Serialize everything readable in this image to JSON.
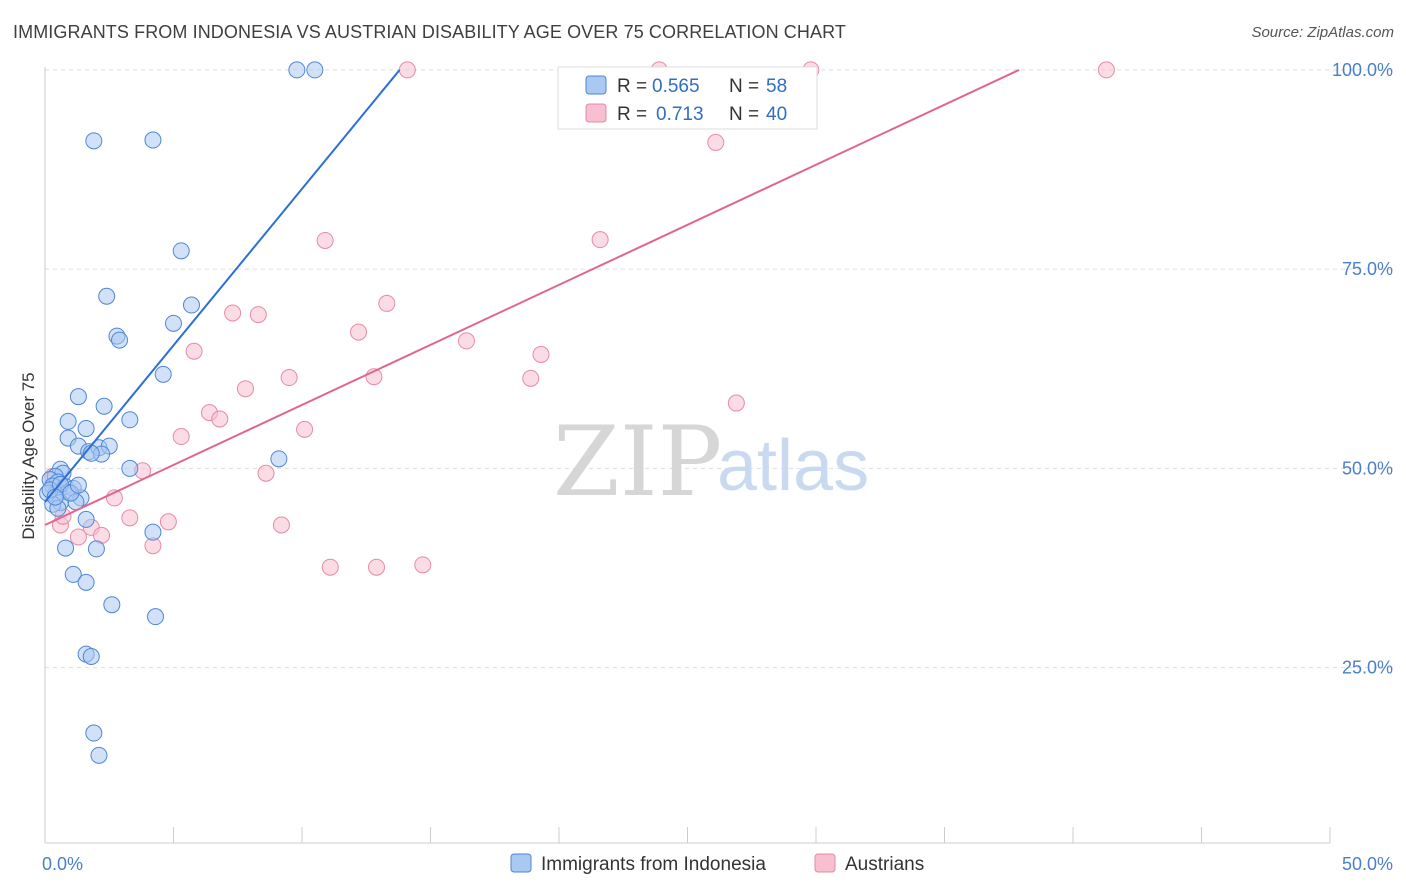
{
  "title": "IMMIGRANTS FROM INDONESIA VS AUSTRIAN DISABILITY AGE OVER 75 CORRELATION CHART",
  "source": "Source: ZipAtlas.com",
  "watermark": {
    "zip": "ZIP",
    "atlas": "atlas"
  },
  "colors": {
    "blue_fill": "#a9c8f2",
    "blue_stroke": "#4f86d6",
    "blue_line": "#2b6fd6",
    "pink_fill": "#f7bfd0",
    "pink_stroke": "#e58aa8",
    "pink_line": "#e06690",
    "tick_text": "#4a7fc9",
    "grid": "#dddddd"
  },
  "legend": {
    "rows": [
      {
        "r_label": "R =",
        "r_value": "0.565",
        "n_label": "N =",
        "n_value": "58"
      },
      {
        "r_label": "R =",
        "r_value": "0.713",
        "n_label": "N =",
        "n_value": "40"
      }
    ]
  },
  "chart_data": {
    "type": "scatter",
    "title": "IMMIGRANTS FROM INDONESIA VS AUSTRIAN DISABILITY AGE OVER 75 CORRELATION CHART",
    "xlabel": "",
    "ylabel": "Disability Age Over 75",
    "xlim": [
      0,
      50
    ],
    "ylim": [
      3,
      103
    ],
    "x_tick_labels": [
      "0.0%",
      "50.0%"
    ],
    "y_ticks": [
      {
        "value": 25,
        "label": "25.0%"
      },
      {
        "value": 50,
        "label": "50.0%"
      },
      {
        "value": 75,
        "label": "75.0%"
      },
      {
        "value": 100,
        "label": "100.0%"
      }
    ],
    "series": [
      {
        "name": "Immigrants from Indonesia",
        "r": 0.565,
        "n": 58,
        "trend": {
          "x1": 0.0,
          "y1": 45.8,
          "x2": 13.8,
          "y2": 100.0
        },
        "points": [
          [
            9.8,
            100
          ],
          [
            10.5,
            100
          ],
          [
            1.9,
            91.1
          ],
          [
            4.2,
            91.2
          ],
          [
            5.3,
            77.3
          ],
          [
            2.4,
            71.6
          ],
          [
            5.7,
            70.5
          ],
          [
            5.0,
            68.2
          ],
          [
            2.8,
            66.6
          ],
          [
            2.9,
            66.1
          ],
          [
            4.6,
            61.8
          ],
          [
            1.3,
            59.0
          ],
          [
            2.3,
            57.8
          ],
          [
            3.3,
            56.1
          ],
          [
            0.9,
            55.9
          ],
          [
            1.6,
            55.0
          ],
          [
            0.9,
            53.8
          ],
          [
            1.3,
            52.8
          ],
          [
            1.7,
            52.1
          ],
          [
            2.1,
            52.6
          ],
          [
            2.5,
            52.8
          ],
          [
            2.2,
            51.8
          ],
          [
            1.8,
            51.9
          ],
          [
            9.1,
            51.2
          ],
          [
            3.3,
            50.0
          ],
          [
            0.6,
            49.9
          ],
          [
            0.7,
            49.4
          ],
          [
            0.4,
            49.0
          ],
          [
            0.2,
            48.6
          ],
          [
            0.5,
            48.3
          ],
          [
            0.3,
            47.8
          ],
          [
            0.8,
            47.7
          ],
          [
            1.1,
            47.5
          ],
          [
            0.9,
            47.0
          ],
          [
            0.4,
            46.8
          ],
          [
            0.1,
            46.9
          ],
          [
            1.4,
            46.3
          ],
          [
            1.2,
            45.8
          ],
          [
            0.6,
            45.7
          ],
          [
            0.3,
            45.5
          ],
          [
            0.5,
            45.0
          ],
          [
            1.6,
            43.6
          ],
          [
            4.2,
            42.0
          ],
          [
            0.8,
            40.0
          ],
          [
            2.0,
            39.9
          ],
          [
            1.1,
            36.7
          ],
          [
            1.6,
            35.7
          ],
          [
            2.6,
            32.9
          ],
          [
            4.3,
            31.4
          ],
          [
            1.6,
            26.7
          ],
          [
            1.8,
            26.4
          ],
          [
            1.9,
            16.8
          ],
          [
            2.1,
            14.0
          ],
          [
            0.2,
            47.3
          ],
          [
            0.6,
            48.0
          ],
          [
            1.0,
            46.9
          ],
          [
            1.3,
            47.9
          ],
          [
            0.4,
            46.4
          ]
        ]
      },
      {
        "name": "Austrians",
        "r": 0.713,
        "n": 40,
        "trend": {
          "x1": 0.0,
          "y1": 42.9,
          "x2": 37.9,
          "y2": 100.0
        },
        "points": [
          [
            14.1,
            100
          ],
          [
            23.9,
            100
          ],
          [
            29.8,
            100
          ],
          [
            41.3,
            100
          ],
          [
            26.1,
            90.9
          ],
          [
            10.9,
            78.6
          ],
          [
            21.6,
            78.7
          ],
          [
            13.3,
            70.7
          ],
          [
            7.3,
            69.5
          ],
          [
            8.3,
            69.3
          ],
          [
            12.2,
            67.1
          ],
          [
            16.4,
            66.0
          ],
          [
            5.8,
            64.7
          ],
          [
            19.3,
            64.3
          ],
          [
            9.5,
            61.4
          ],
          [
            12.8,
            61.5
          ],
          [
            18.9,
            61.3
          ],
          [
            7.8,
            60.0
          ],
          [
            26.9,
            58.2
          ],
          [
            6.4,
            57.0
          ],
          [
            6.8,
            56.2
          ],
          [
            10.1,
            54.9
          ],
          [
            5.3,
            54.0
          ],
          [
            3.8,
            49.7
          ],
          [
            8.6,
            49.4
          ],
          [
            2.7,
            46.3
          ],
          [
            3.3,
            43.8
          ],
          [
            4.8,
            43.3
          ],
          [
            9.2,
            42.9
          ],
          [
            0.6,
            42.9
          ],
          [
            1.8,
            42.6
          ],
          [
            2.2,
            41.6
          ],
          [
            1.3,
            41.4
          ],
          [
            4.2,
            40.3
          ],
          [
            11.1,
            37.6
          ],
          [
            12.9,
            37.6
          ],
          [
            14.7,
            37.9
          ],
          [
            0.3,
            49.0
          ],
          [
            0.7,
            44.0
          ],
          [
            0.5,
            47.2
          ]
        ]
      }
    ]
  }
}
